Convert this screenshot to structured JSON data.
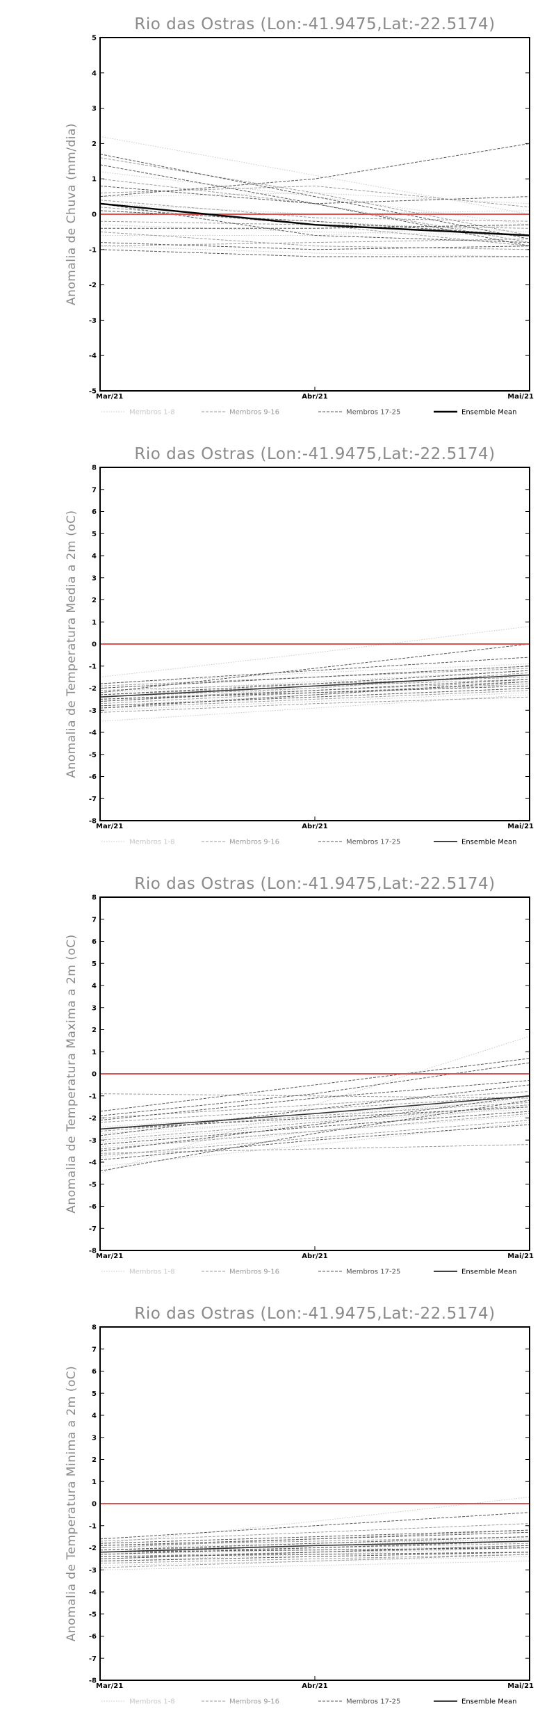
{
  "chart_data": [
    {
      "type": "line",
      "title": "Rio das Ostras (Lon:-41.9475,Lat:-22.5174)",
      "ylabel": "Anomalia de Chuva (mm/dia)",
      "xlabel": "",
      "x": [
        "Mar/21",
        "Abr/21",
        "Mai/21"
      ],
      "ylim": [
        -5,
        5
      ],
      "yticks": [
        -5,
        -4,
        -3,
        -2,
        -1,
        0,
        1,
        2,
        3,
        4,
        5
      ],
      "zero_line_color": "#e05050",
      "legend": [
        {
          "label": "Membros 1-8",
          "color": "#c8c8c8",
          "dash": "dotted"
        },
        {
          "label": "Membros 9-16",
          "color": "#9a9a9a",
          "dash": "dashed"
        },
        {
          "label": "Membros 17-25",
          "color": "#555555",
          "dash": "dashed"
        },
        {
          "label": "Ensemble Mean",
          "color": "#000000",
          "dash": "solid"
        }
      ],
      "mean_color": "#000000",
      "mean_width": 2.4,
      "series": [
        {
          "values": [
            2.2,
            1.1,
            0.0
          ],
          "group": 0
        },
        {
          "values": [
            1.2,
            0.5,
            -0.3
          ],
          "group": 0
        },
        {
          "values": [
            0.5,
            0.6,
            0.3
          ],
          "group": 0
        },
        {
          "values": [
            0.1,
            -0.2,
            -0.5
          ],
          "group": 0
        },
        {
          "values": [
            -0.3,
            -0.5,
            -0.6
          ],
          "group": 0
        },
        {
          "values": [
            -0.6,
            -0.6,
            -0.3
          ],
          "group": 0
        },
        {
          "values": [
            -0.9,
            -1.1,
            -1.2
          ],
          "group": 0
        },
        {
          "values": [
            0.3,
            0.0,
            0.1
          ],
          "group": 0
        },
        {
          "values": [
            1.6,
            0.6,
            -0.6
          ],
          "group": 1
        },
        {
          "values": [
            1.0,
            0.3,
            -0.8
          ],
          "group": 1
        },
        {
          "values": [
            0.6,
            0.8,
            0.2
          ],
          "group": 1
        },
        {
          "values": [
            0.2,
            -0.3,
            -0.9
          ],
          "group": 1
        },
        {
          "values": [
            -0.2,
            -0.3,
            -0.4
          ],
          "group": 1
        },
        {
          "values": [
            -0.5,
            -0.9,
            -1.0
          ],
          "group": 1
        },
        {
          "values": [
            -0.9,
            -0.8,
            -0.7
          ],
          "group": 1
        },
        {
          "values": [
            0.4,
            -0.1,
            -0.2
          ],
          "group": 1
        },
        {
          "values": [
            1.7,
            0.5,
            -0.7
          ],
          "group": 2
        },
        {
          "values": [
            1.4,
            0.3,
            -0.9
          ],
          "group": 2
        },
        {
          "values": [
            0.5,
            1.0,
            2.0
          ],
          "group": 2
        },
        {
          "values": [
            0.8,
            0.3,
            0.5
          ],
          "group": 2
        },
        {
          "values": [
            0.1,
            -0.2,
            -0.6
          ],
          "group": 2
        },
        {
          "values": [
            -0.4,
            -0.4,
            -0.3
          ],
          "group": 2
        },
        {
          "values": [
            -0.8,
            -1.0,
            -0.9
          ],
          "group": 2
        },
        {
          "values": [
            -1.0,
            -1.2,
            -1.2
          ],
          "group": 2
        },
        {
          "values": [
            0.3,
            -0.6,
            -0.8
          ],
          "group": 2
        }
      ],
      "mean": [
        0.3,
        -0.3,
        -0.6
      ]
    },
    {
      "type": "line",
      "title": "Rio das Ostras (Lon:-41.9475,Lat:-22.5174)",
      "ylabel": "Anomalia de Temperatura Media a 2m (oC)",
      "xlabel": "",
      "x": [
        "Mar/21",
        "Abr/21",
        "Mai/21"
      ],
      "ylim": [
        -8,
        8
      ],
      "yticks": [
        -8,
        -7,
        -6,
        -5,
        -4,
        -3,
        -2,
        -1,
        0,
        1,
        2,
        3,
        4,
        5,
        6,
        7,
        8
      ],
      "zero_line_color": "#e05050",
      "legend": [
        {
          "label": "Membros 1-8",
          "color": "#c8c8c8",
          "dash": "dotted"
        },
        {
          "label": "Membros 9-16",
          "color": "#9a9a9a",
          "dash": "dashed"
        },
        {
          "label": "Membros 17-25",
          "color": "#555555",
          "dash": "dashed"
        },
        {
          "label": "Ensemble Mean",
          "color": "#000000",
          "dash": "solid"
        }
      ],
      "mean_color": "#333333",
      "mean_width": 1.6,
      "series": [
        {
          "values": [
            -1.5,
            -0.4,
            0.8
          ],
          "group": 0
        },
        {
          "values": [
            -3.5,
            -2.9,
            -2.3
          ],
          "group": 0
        },
        {
          "values": [
            -2.2,
            -1.7,
            -1.2
          ],
          "group": 0
        },
        {
          "values": [
            -2.8,
            -2.3,
            -1.8
          ],
          "group": 0
        },
        {
          "values": [
            -2.0,
            -1.5,
            -1.0
          ],
          "group": 0
        },
        {
          "values": [
            -2.6,
            -2.0,
            -1.4
          ],
          "group": 0
        },
        {
          "values": [
            -3.0,
            -2.6,
            -2.2
          ],
          "group": 0
        },
        {
          "values": [
            -1.8,
            -1.3,
            -0.9
          ],
          "group": 0
        },
        {
          "values": [
            -2.1,
            -1.8,
            -1.5
          ],
          "group": 1
        },
        {
          "values": [
            -2.5,
            -2.1,
            -1.7
          ],
          "group": 1
        },
        {
          "values": [
            -2.9,
            -2.5,
            -2.1
          ],
          "group": 1
        },
        {
          "values": [
            -1.9,
            -1.5,
            -1.1
          ],
          "group": 1
        },
        {
          "values": [
            -2.3,
            -1.9,
            -1.6
          ],
          "group": 1
        },
        {
          "values": [
            -2.7,
            -2.2,
            -1.8
          ],
          "group": 1
        },
        {
          "values": [
            -3.1,
            -2.7,
            -2.4
          ],
          "group": 1
        },
        {
          "values": [
            -2.4,
            -2.0,
            -1.3
          ],
          "group": 1
        },
        {
          "values": [
            -2.2,
            -1.1,
            0.0
          ],
          "group": 2
        },
        {
          "values": [
            -1.8,
            -1.2,
            -0.6
          ],
          "group": 2
        },
        {
          "values": [
            -2.0,
            -1.5,
            -1.0
          ],
          "group": 2
        },
        {
          "values": [
            -2.4,
            -1.9,
            -1.4
          ],
          "group": 2
        },
        {
          "values": [
            -2.6,
            -2.1,
            -1.6
          ],
          "group": 2
        },
        {
          "values": [
            -2.9,
            -2.3,
            -1.7
          ],
          "group": 2
        },
        {
          "values": [
            -2.3,
            -1.8,
            -1.2
          ],
          "group": 2
        },
        {
          "values": [
            -2.8,
            -2.4,
            -2.0
          ],
          "group": 2
        },
        {
          "values": [
            -2.5,
            -2.2,
            -1.9
          ],
          "group": 2
        }
      ],
      "mean": [
        -2.4,
        -1.9,
        -1.4
      ]
    },
    {
      "type": "line",
      "title": "Rio das Ostras (Lon:-41.9475,Lat:-22.5174)",
      "ylabel": "Anomalia de Temperatura Maxima a 2m (oC)",
      "xlabel": "",
      "x": [
        "Mar/21",
        "Abr/21",
        "Mai/21"
      ],
      "ylim": [
        -8,
        8
      ],
      "yticks": [
        -8,
        -7,
        -6,
        -5,
        -4,
        -3,
        -2,
        -1,
        0,
        1,
        2,
        3,
        4,
        5,
        6,
        7,
        8
      ],
      "zero_line_color": "#e05050",
      "legend": [
        {
          "label": "Membros 1-8",
          "color": "#c8c8c8",
          "dash": "dotted"
        },
        {
          "label": "Membros 9-16",
          "color": "#9a9a9a",
          "dash": "dashed"
        },
        {
          "label": "Membros 17-25",
          "color": "#555555",
          "dash": "dashed"
        },
        {
          "label": "Ensemble Mean",
          "color": "#000000",
          "dash": "solid"
        }
      ],
      "mean_color": "#333333",
      "mean_width": 1.6,
      "series": [
        {
          "values": [
            -4.5,
            -1.4,
            1.7
          ],
          "group": 0
        },
        {
          "values": [
            -3.8,
            -2.6,
            -1.4
          ],
          "group": 0
        },
        {
          "values": [
            -2.9,
            -2.0,
            -1.1
          ],
          "group": 0
        },
        {
          "values": [
            -3.3,
            -2.6,
            -1.9
          ],
          "group": 0
        },
        {
          "values": [
            -2.4,
            -1.8,
            -1.2
          ],
          "group": 0
        },
        {
          "values": [
            -4.2,
            -3.2,
            -2.2
          ],
          "group": 0
        },
        {
          "values": [
            -3.1,
            -2.3,
            -1.5
          ],
          "group": 0
        },
        {
          "values": [
            -2.7,
            -2.1,
            -1.6
          ],
          "group": 0
        },
        {
          "values": [
            -0.9,
            -1.0,
            -1.1
          ],
          "group": 1
        },
        {
          "values": [
            -3.6,
            -3.4,
            -3.2
          ],
          "group": 1
        },
        {
          "values": [
            -2.2,
            -1.6,
            -1.0
          ],
          "group": 1
        },
        {
          "values": [
            -3.0,
            -2.2,
            -1.4
          ],
          "group": 1
        },
        {
          "values": [
            -2.6,
            -1.9,
            -1.3
          ],
          "group": 1
        },
        {
          "values": [
            -3.4,
            -2.6,
            -1.8
          ],
          "group": 1
        },
        {
          "values": [
            -2.0,
            -1.4,
            -0.8
          ],
          "group": 1
        },
        {
          "values": [
            -3.7,
            -2.9,
            -2.1
          ],
          "group": 1
        },
        {
          "values": [
            -1.7,
            -0.5,
            0.7
          ],
          "group": 2
        },
        {
          "values": [
            -2.1,
            -1.1,
            -0.3
          ],
          "group": 2
        },
        {
          "values": [
            -3.5,
            -2.3,
            -1.0
          ],
          "group": 2
        },
        {
          "values": [
            -4.4,
            -2.7,
            -1.2
          ],
          "group": 2
        },
        {
          "values": [
            -2.8,
            -1.6,
            -0.5
          ],
          "group": 2
        },
        {
          "values": [
            -1.9,
            -0.9,
            0.5
          ],
          "group": 2
        },
        {
          "values": [
            -3.2,
            -2.4,
            -1.7
          ],
          "group": 2
        },
        {
          "values": [
            -2.5,
            -2.0,
            -1.5
          ],
          "group": 2
        },
        {
          "values": [
            -3.9,
            -3.0,
            -2.3
          ],
          "group": 2
        }
      ],
      "mean": [
        -2.5,
        -1.8,
        -1.0
      ]
    },
    {
      "type": "line",
      "title": "Rio das Ostras (Lon:-41.9475,Lat:-22.5174)",
      "ylabel": "Anomalia de Temperatura Minima a 2m (oC)",
      "xlabel": "",
      "x": [
        "Mar/21",
        "Abr/21",
        "Mai/21"
      ],
      "ylim": [
        -8,
        8
      ],
      "yticks": [
        -8,
        -7,
        -6,
        -5,
        -4,
        -3,
        -2,
        -1,
        0,
        1,
        2,
        3,
        4,
        5,
        6,
        7,
        8
      ],
      "zero_line_color": "#e05050",
      "legend": [
        {
          "label": "Membros 1-8",
          "color": "#c8c8c8",
          "dash": "dotted"
        },
        {
          "label": "Membros 9-16",
          "color": "#9a9a9a",
          "dash": "dashed"
        },
        {
          "label": "Membros 17-25",
          "color": "#555555",
          "dash": "dashed"
        },
        {
          "label": "Ensemble Mean",
          "color": "#000000",
          "dash": "solid"
        }
      ],
      "mean_color": "#333333",
      "mean_width": 1.6,
      "series": [
        {
          "values": [
            -1.8,
            -0.8,
            0.3
          ],
          "group": 0
        },
        {
          "values": [
            -3.0,
            -2.8,
            -2.6
          ],
          "group": 0
        },
        {
          "values": [
            -2.3,
            -2.1,
            -1.9
          ],
          "group": 0
        },
        {
          "values": [
            -2.6,
            -2.3,
            -2.0
          ],
          "group": 0
        },
        {
          "values": [
            -2.0,
            -1.8,
            -1.6
          ],
          "group": 0
        },
        {
          "values": [
            -2.8,
            -2.6,
            -2.4
          ],
          "group": 0
        },
        {
          "values": [
            -2.2,
            -1.9,
            -1.6
          ],
          "group": 0
        },
        {
          "values": [
            -2.5,
            -2.2,
            -1.9
          ],
          "group": 0
        },
        {
          "values": [
            -1.7,
            -1.3,
            -0.9
          ],
          "group": 1
        },
        {
          "values": [
            -2.1,
            -1.9,
            -1.7
          ],
          "group": 1
        },
        {
          "values": [
            -2.4,
            -2.2,
            -2.0
          ],
          "group": 1
        },
        {
          "values": [
            -2.7,
            -2.5,
            -2.3
          ],
          "group": 1
        },
        {
          "values": [
            -1.9,
            -1.7,
            -1.5
          ],
          "group": 1
        },
        {
          "values": [
            -2.2,
            -2.0,
            -1.8
          ],
          "group": 1
        },
        {
          "values": [
            -2.9,
            -2.6,
            -2.3
          ],
          "group": 1
        },
        {
          "values": [
            -2.0,
            -1.6,
            -1.2
          ],
          "group": 1
        },
        {
          "values": [
            -1.6,
            -1.0,
            -0.4
          ],
          "group": 2
        },
        {
          "values": [
            -2.3,
            -2.0,
            -1.7
          ],
          "group": 2
        },
        {
          "values": [
            -2.1,
            -1.8,
            -1.5
          ],
          "group": 2
        },
        {
          "values": [
            -1.9,
            -1.6,
            -1.3
          ],
          "group": 2
        },
        {
          "values": [
            -2.5,
            -2.2,
            -1.9
          ],
          "group": 2
        },
        {
          "values": [
            -2.2,
            -2.1,
            -2.0
          ],
          "group": 2
        },
        {
          "values": [
            -2.4,
            -2.3,
            -2.2
          ],
          "group": 2
        },
        {
          "values": [
            -1.8,
            -1.5,
            -1.2
          ],
          "group": 2
        },
        {
          "values": [
            -2.6,
            -2.4,
            -2.2
          ],
          "group": 2
        }
      ],
      "mean": [
        -2.2,
        -1.9,
        -1.7
      ]
    }
  ]
}
